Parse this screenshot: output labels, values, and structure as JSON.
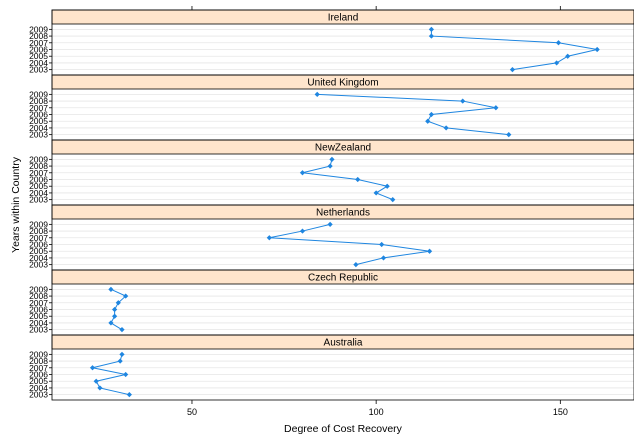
{
  "chart_data": {
    "type": "line",
    "layout": "lattice dot plot with one panel per country",
    "xlabel": "Degree of Cost Recovery",
    "ylabel": "Years within Country",
    "xlim": [
      12,
      170
    ],
    "x_ticks": [
      50,
      100,
      150
    ],
    "x_tick_labels": [
      "50",
      "100",
      "150"
    ],
    "y_categories": [
      "2003",
      "2004",
      "2005",
      "2006",
      "2007",
      "2008",
      "2009"
    ],
    "grid": true,
    "colors": {
      "series": "#1f86e0",
      "strip": "#ffe5cc",
      "grid": "#e6e6e6",
      "frame": "#000000"
    },
    "panels": [
      {
        "name": "Ireland",
        "values": {
          "2003": 137,
          "2004": 149,
          "2005": 152,
          "2006": 160,
          "2007": 149.5,
          "2008": 115,
          "2009": 115
        }
      },
      {
        "name": "United Kingdom",
        "values": {
          "2003": 136,
          "2004": 119,
          "2005": 114,
          "2006": 115,
          "2007": 132.5,
          "2008": 123.5,
          "2009": 84
        }
      },
      {
        "name": "NewZealand",
        "values": {
          "2003": 104.5,
          "2004": 100,
          "2005": 103,
          "2006": 95,
          "2007": 80,
          "2008": 87.5,
          "2009": 88
        }
      },
      {
        "name": "Netherlands",
        "values": {
          "2003": 94.5,
          "2004": 102,
          "2005": 114.5,
          "2006": 101.5,
          "2007": 71,
          "2008": 80,
          "2009": 87.5
        }
      },
      {
        "name": "Czech Republic",
        "values": {
          "2003": 31,
          "2004": 28,
          "2005": 29,
          "2006": 29,
          "2007": 30,
          "2008": 32,
          "2009": 28
        }
      },
      {
        "name": "Australia",
        "values": {
          "2003": 33,
          "2004": 25,
          "2005": 24,
          "2006": 32,
          "2007": 23,
          "2008": 30.5,
          "2009": 31
        }
      }
    ]
  }
}
